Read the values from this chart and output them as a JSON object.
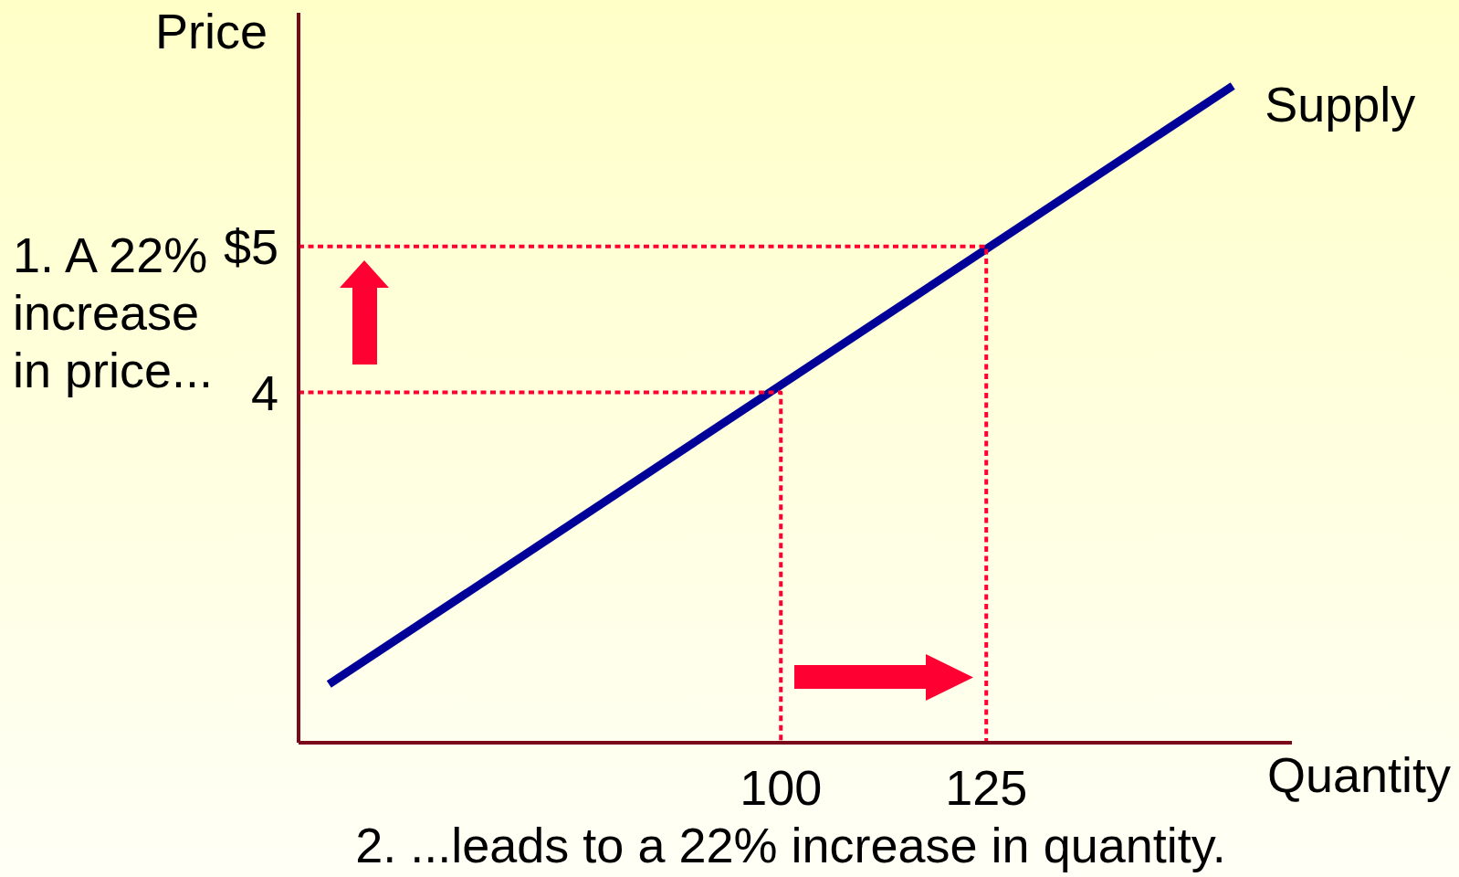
{
  "chart_data": {
    "type": "line",
    "xlabel": "Quantity",
    "ylabel": "Price",
    "annotations": [
      "1. A 22% increase in price...",
      "2. ...leads to a 22% increase in quantity."
    ],
    "xlim": [
      41.3,
      162.2
    ],
    "ylim": [
      1.6,
      6.6
    ],
    "xticks": [
      100,
      125
    ],
    "yticks": [
      {
        "value": 5,
        "label": "$5"
      },
      4
    ],
    "series": [
      {
        "name": "Supply",
        "color": "#000099",
        "x": [
          45,
          155
        ],
        "values": [
          2.0,
          6.1
        ],
        "line_style": "solid"
      },
      {
        "color": "#ff0033",
        "x": [
          41.3,
          125,
          125
        ],
        "values": [
          5,
          5,
          1.6
        ],
        "line_style": "dotted"
      },
      {
        "color": "#ff0033",
        "x": [
          41.3,
          100,
          100
        ],
        "values": [
          4,
          4,
          1.6
        ],
        "line_style": "dotted"
      }
    ],
    "grid": false,
    "legend": false,
    "marker": "none"
  }
}
